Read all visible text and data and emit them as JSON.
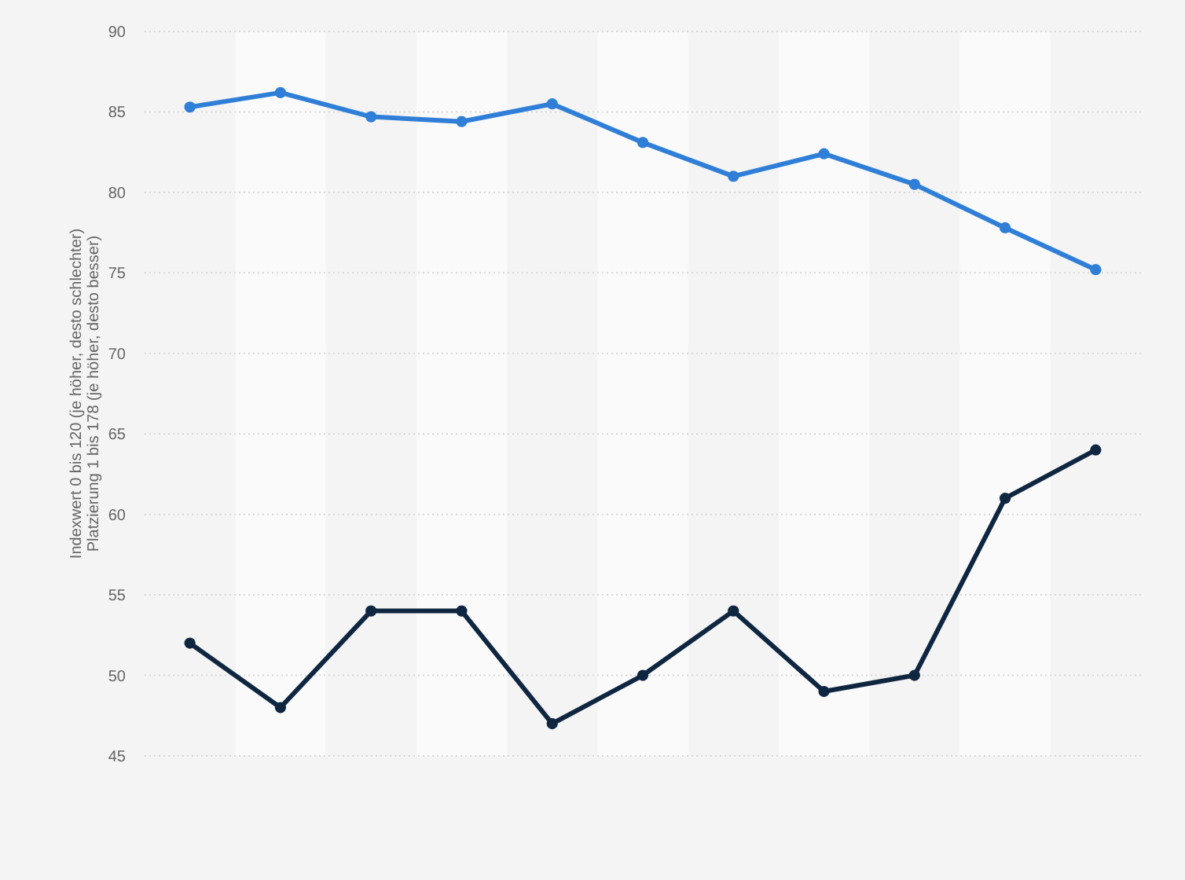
{
  "chart_data": {
    "type": "line",
    "ylabel": "Indexwert 0 bis 120 (je höher, desto schlechter)\nPlatzierung 1 bis 178 (je höher, desto besser)",
    "categories": [
      null,
      null,
      null,
      null,
      null,
      null,
      null,
      null,
      null,
      null,
      null
    ],
    "series": [
      {
        "color": "#2f7ed8",
        "values": [
          85.3,
          86.2,
          84.7,
          84.4,
          85.5,
          83.1,
          81.0,
          82.4,
          80.5,
          77.8,
          75.2
        ]
      },
      {
        "color": "#0f2641",
        "values": [
          52,
          48,
          54,
          54,
          47,
          50,
          54,
          49,
          50,
          61,
          64
        ]
      }
    ],
    "ylim": [
      45,
      90
    ],
    "yticks": [
      45,
      50,
      55,
      60,
      65,
      70,
      75,
      80,
      85,
      90
    ],
    "grid": "y",
    "marker": "circle",
    "line_style": "solid"
  }
}
